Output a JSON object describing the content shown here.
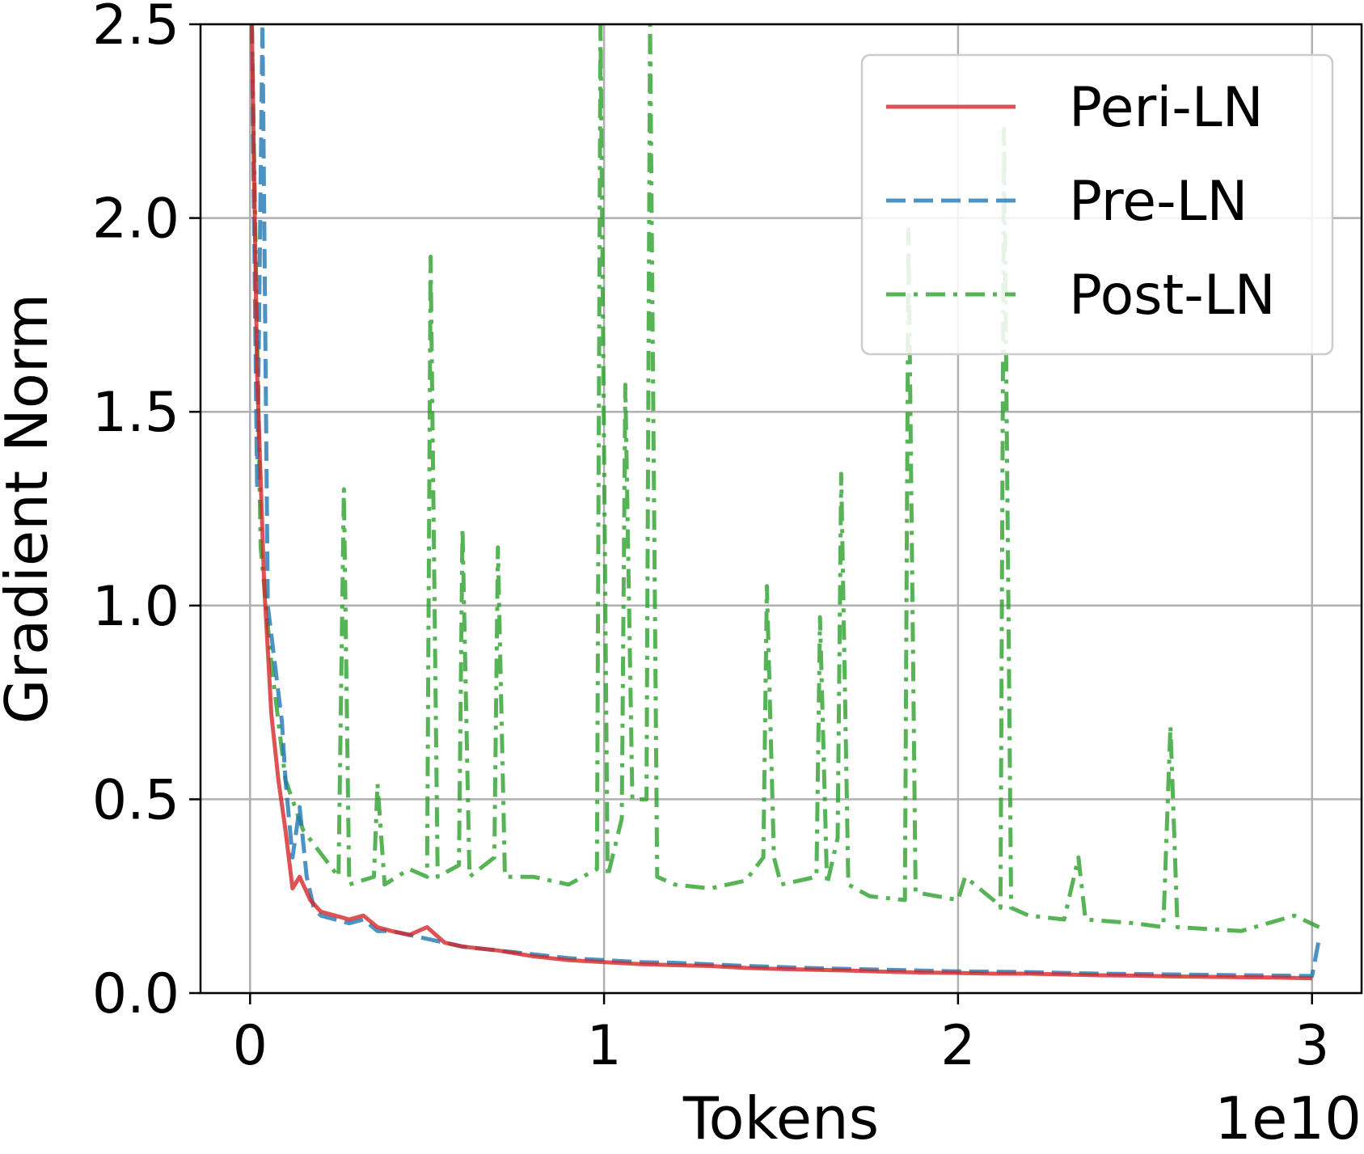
{
  "chart_data": {
    "type": "line",
    "title": "",
    "xlabel": "Tokens",
    "ylabel": "Gradient Norm",
    "x_offset_label": "1e10",
    "xlim": [
      -0.14,
      3.14
    ],
    "ylim": [
      0.0,
      2.5
    ],
    "xticks": [
      0,
      1,
      2,
      3
    ],
    "xtick_labels": [
      "0",
      "1",
      "2",
      "3"
    ],
    "yticks": [
      0.0,
      0.5,
      1.0,
      1.5,
      2.0,
      2.5
    ],
    "ytick_labels": [
      "0.0",
      "0.5",
      "1.0",
      "1.5",
      "2.0",
      "2.5"
    ],
    "grid": true,
    "legend_position": "top-right",
    "series": [
      {
        "name": "Peri-LN",
        "color": "#d62728",
        "dash": "solid",
        "points": [
          [
            0.005,
            2.5
          ],
          [
            0.02,
            1.6
          ],
          [
            0.04,
            1.05
          ],
          [
            0.06,
            0.72
          ],
          [
            0.08,
            0.55
          ],
          [
            0.1,
            0.42
          ],
          [
            0.12,
            0.27
          ],
          [
            0.14,
            0.3
          ],
          [
            0.17,
            0.24
          ],
          [
            0.2,
            0.21
          ],
          [
            0.24,
            0.2
          ],
          [
            0.28,
            0.19
          ],
          [
            0.32,
            0.2
          ],
          [
            0.36,
            0.17
          ],
          [
            0.4,
            0.16
          ],
          [
            0.45,
            0.15
          ],
          [
            0.5,
            0.17
          ],
          [
            0.55,
            0.13
          ],
          [
            0.6,
            0.12
          ],
          [
            0.7,
            0.11
          ],
          [
            0.8,
            0.095
          ],
          [
            0.9,
            0.085
          ],
          [
            1.0,
            0.08
          ],
          [
            1.1,
            0.075
          ],
          [
            1.2,
            0.072
          ],
          [
            1.3,
            0.07
          ],
          [
            1.4,
            0.065
          ],
          [
            1.5,
            0.062
          ],
          [
            1.6,
            0.06
          ],
          [
            1.7,
            0.058
          ],
          [
            1.8,
            0.055
          ],
          [
            1.9,
            0.053
          ],
          [
            2.0,
            0.052
          ],
          [
            2.1,
            0.05
          ],
          [
            2.2,
            0.05
          ],
          [
            2.3,
            0.048
          ],
          [
            2.4,
            0.046
          ],
          [
            2.5,
            0.045
          ],
          [
            2.6,
            0.043
          ],
          [
            2.7,
            0.042
          ],
          [
            2.8,
            0.041
          ],
          [
            2.9,
            0.04
          ],
          [
            3.0,
            0.038
          ]
        ]
      },
      {
        "name": "Pre-LN",
        "color": "#1f77b4",
        "dash": "dashed",
        "points": [
          [
            0.005,
            2.5
          ],
          [
            0.02,
            1.3
          ],
          [
            0.035,
            2.5
          ],
          [
            0.05,
            1.0
          ],
          [
            0.07,
            0.85
          ],
          [
            0.09,
            0.7
          ],
          [
            0.1,
            0.55
          ],
          [
            0.12,
            0.35
          ],
          [
            0.14,
            0.48
          ],
          [
            0.16,
            0.3
          ],
          [
            0.18,
            0.22
          ],
          [
            0.2,
            0.2
          ],
          [
            0.24,
            0.19
          ],
          [
            0.28,
            0.18
          ],
          [
            0.32,
            0.19
          ],
          [
            0.36,
            0.16
          ],
          [
            0.4,
            0.16
          ],
          [
            0.45,
            0.15
          ],
          [
            0.5,
            0.14
          ],
          [
            0.55,
            0.13
          ],
          [
            0.6,
            0.12
          ],
          [
            0.7,
            0.11
          ],
          [
            0.8,
            0.1
          ],
          [
            0.9,
            0.09
          ],
          [
            1.0,
            0.085
          ],
          [
            1.1,
            0.08
          ],
          [
            1.2,
            0.078
          ],
          [
            1.3,
            0.074
          ],
          [
            1.4,
            0.07
          ],
          [
            1.5,
            0.067
          ],
          [
            1.6,
            0.064
          ],
          [
            1.7,
            0.062
          ],
          [
            1.8,
            0.06
          ],
          [
            1.9,
            0.058
          ],
          [
            2.0,
            0.056
          ],
          [
            2.1,
            0.055
          ],
          [
            2.2,
            0.054
          ],
          [
            2.3,
            0.052
          ],
          [
            2.4,
            0.05
          ],
          [
            2.5,
            0.049
          ],
          [
            2.6,
            0.048
          ],
          [
            2.7,
            0.047
          ],
          [
            2.8,
            0.046
          ],
          [
            2.9,
            0.045
          ],
          [
            3.0,
            0.044
          ],
          [
            3.02,
            0.14
          ]
        ]
      },
      {
        "name": "Post-LN",
        "color": "#2ca02c",
        "dash": "dashdot",
        "points": [
          [
            0.005,
            2.5
          ],
          [
            0.03,
            1.15
          ],
          [
            0.06,
            0.85
          ],
          [
            0.1,
            0.55
          ],
          [
            0.15,
            0.42
          ],
          [
            0.2,
            0.36
          ],
          [
            0.25,
            0.3
          ],
          [
            0.265,
            1.3
          ],
          [
            0.28,
            0.28
          ],
          [
            0.35,
            0.3
          ],
          [
            0.36,
            0.54
          ],
          [
            0.38,
            0.28
          ],
          [
            0.45,
            0.32
          ],
          [
            0.5,
            0.3
          ],
          [
            0.51,
            1.9
          ],
          [
            0.53,
            0.3
          ],
          [
            0.59,
            0.33
          ],
          [
            0.6,
            1.2
          ],
          [
            0.62,
            0.3
          ],
          [
            0.69,
            0.35
          ],
          [
            0.7,
            1.15
          ],
          [
            0.72,
            0.3
          ],
          [
            0.8,
            0.3
          ],
          [
            0.9,
            0.28
          ],
          [
            0.98,
            0.32
          ],
          [
            0.99,
            2.5
          ],
          [
            1.01,
            0.3
          ],
          [
            1.05,
            0.45
          ],
          [
            1.06,
            1.57
          ],
          [
            1.08,
            0.5
          ],
          [
            1.12,
            0.5
          ],
          [
            1.13,
            2.5
          ],
          [
            1.15,
            0.3
          ],
          [
            1.2,
            0.28
          ],
          [
            1.3,
            0.27
          ],
          [
            1.4,
            0.29
          ],
          [
            1.45,
            0.35
          ],
          [
            1.46,
            1.05
          ],
          [
            1.48,
            0.35
          ],
          [
            1.5,
            0.28
          ],
          [
            1.6,
            0.3
          ],
          [
            1.61,
            0.97
          ],
          [
            1.63,
            0.28
          ],
          [
            1.66,
            0.4
          ],
          [
            1.67,
            1.34
          ],
          [
            1.69,
            0.28
          ],
          [
            1.75,
            0.25
          ],
          [
            1.85,
            0.24
          ],
          [
            1.86,
            1.97
          ],
          [
            1.88,
            0.26
          ],
          [
            2.0,
            0.24
          ],
          [
            2.02,
            0.3
          ],
          [
            2.1,
            0.24
          ],
          [
            2.12,
            0.22
          ],
          [
            2.13,
            2.23
          ],
          [
            2.15,
            0.22
          ],
          [
            2.2,
            0.2
          ],
          [
            2.3,
            0.19
          ],
          [
            2.34,
            0.35
          ],
          [
            2.36,
            0.19
          ],
          [
            2.5,
            0.18
          ],
          [
            2.58,
            0.17
          ],
          [
            2.6,
            0.69
          ],
          [
            2.62,
            0.17
          ],
          [
            2.8,
            0.16
          ],
          [
            2.95,
            0.2
          ],
          [
            3.02,
            0.17
          ]
        ]
      }
    ]
  }
}
